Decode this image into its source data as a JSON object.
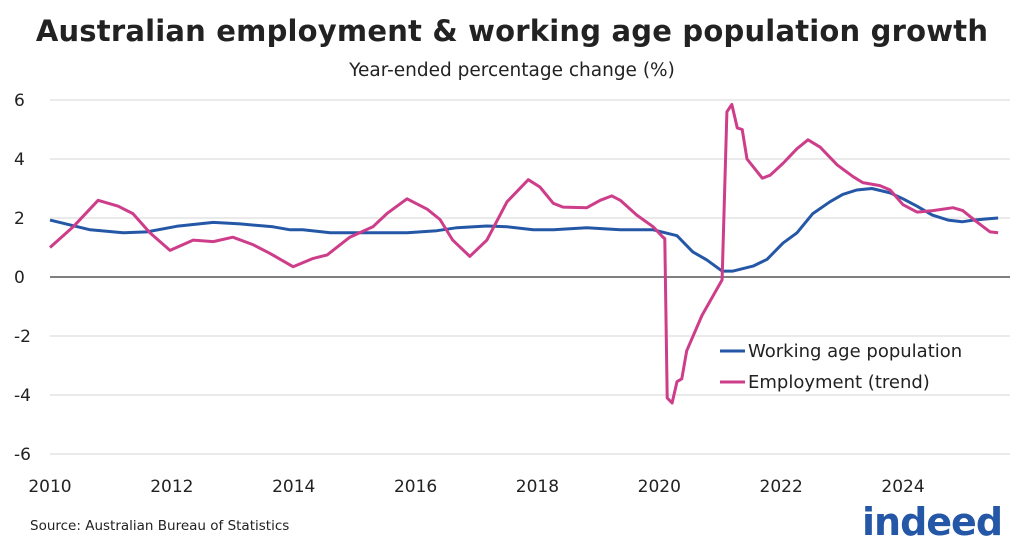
{
  "chart_data": {
    "type": "line",
    "title": "Australian employment & working age population growth",
    "subtitle": "Year-ended percentage change (%)",
    "xlabel": "",
    "ylabel": "",
    "xlim": [
      2010,
      2025.9
    ],
    "ylim": [
      -6,
      6
    ],
    "x_ticks": [
      "2010",
      "2012",
      "2014",
      "2016",
      "2018",
      "2020",
      "2022",
      "2024"
    ],
    "y_ticks": [
      "6",
      "4",
      "2",
      "0",
      "-2",
      "-4",
      "-6"
    ],
    "grid": true,
    "legend_position": "lower-right",
    "series": [
      {
        "name": "Working age population",
        "color": "#2557a7",
        "x": [
          2010.0,
          2010.66,
          2011.2,
          2011.59,
          2012.08,
          2012.68,
          2013.12,
          2013.66,
          2013.94,
          2014.15,
          2014.6,
          2015.86,
          2016.35,
          2016.68,
          2017.17,
          2017.5,
          2017.93,
          2018.26,
          2018.81,
          2019.36,
          2019.9,
          2020.29,
          2020.55,
          2020.78,
          2021.03,
          2021.21,
          2021.54,
          2021.77,
          2022.03,
          2022.26,
          2022.52,
          2022.8,
          2023.01,
          2023.24,
          2023.49,
          2023.79,
          2024.0,
          2024.23,
          2024.48,
          2024.74,
          2024.97,
          2025.15,
          2025.38,
          2025.56
        ],
        "y": [
          1.93,
          1.6,
          1.5,
          1.53,
          1.72,
          1.85,
          1.8,
          1.7,
          1.6,
          1.6,
          1.5,
          1.5,
          1.57,
          1.67,
          1.73,
          1.7,
          1.6,
          1.6,
          1.67,
          1.6,
          1.6,
          1.4,
          0.85,
          0.58,
          0.2,
          0.2,
          0.37,
          0.6,
          1.15,
          1.5,
          2.15,
          2.55,
          2.8,
          2.95,
          3.0,
          2.85,
          2.65,
          2.4,
          2.1,
          1.93,
          1.87,
          1.93,
          1.97,
          2.0
        ]
      },
      {
        "name": "Employment (trend)",
        "color": "#cd3d8a",
        "x": [
          2010.0,
          2010.38,
          2010.79,
          2011.12,
          2011.36,
          2011.64,
          2011.97,
          2012.35,
          2012.68,
          2013.0,
          2013.33,
          2013.61,
          2013.99,
          2014.32,
          2014.55,
          2014.92,
          2015.3,
          2015.53,
          2015.86,
          2016.19,
          2016.4,
          2016.61,
          2016.89,
          2017.17,
          2017.5,
          2017.85,
          2018.04,
          2018.26,
          2018.42,
          2018.81,
          2019.03,
          2019.22,
          2019.36,
          2019.63,
          2019.9,
          2020.06,
          2020.09,
          2020.13,
          2020.21,
          2020.29,
          2020.37,
          2020.45,
          2020.7,
          2021.03,
          2021.11,
          2021.19,
          2021.28,
          2021.36,
          2021.44,
          2021.69,
          2021.82,
          2022.03,
          2022.26,
          2022.44,
          2022.64,
          2022.92,
          2023.18,
          2023.34,
          2023.62,
          2023.79,
          2024.0,
          2024.23,
          2024.49,
          2024.82,
          2024.98,
          2025.21,
          2025.43,
          2025.56
        ],
        "y": [
          1.0,
          1.7,
          2.6,
          2.4,
          2.15,
          1.5,
          0.9,
          1.25,
          1.2,
          1.35,
          1.1,
          0.8,
          0.35,
          0.63,
          0.75,
          1.35,
          1.7,
          2.15,
          2.65,
          2.3,
          1.95,
          1.25,
          0.7,
          1.25,
          2.55,
          3.3,
          3.05,
          2.5,
          2.37,
          2.35,
          2.6,
          2.75,
          2.6,
          2.1,
          1.7,
          1.35,
          1.3,
          -4.1,
          -4.27,
          -3.55,
          -3.45,
          -2.5,
          -1.3,
          -0.1,
          5.6,
          5.85,
          5.05,
          5.0,
          4.0,
          3.35,
          3.45,
          3.85,
          4.35,
          4.65,
          4.4,
          3.8,
          3.4,
          3.2,
          3.1,
          2.95,
          2.45,
          2.2,
          2.25,
          2.35,
          2.25,
          1.87,
          1.53,
          1.5
        ]
      }
    ]
  },
  "source": "Source: Australian Bureau of Statistics",
  "logo_text": "indeed"
}
